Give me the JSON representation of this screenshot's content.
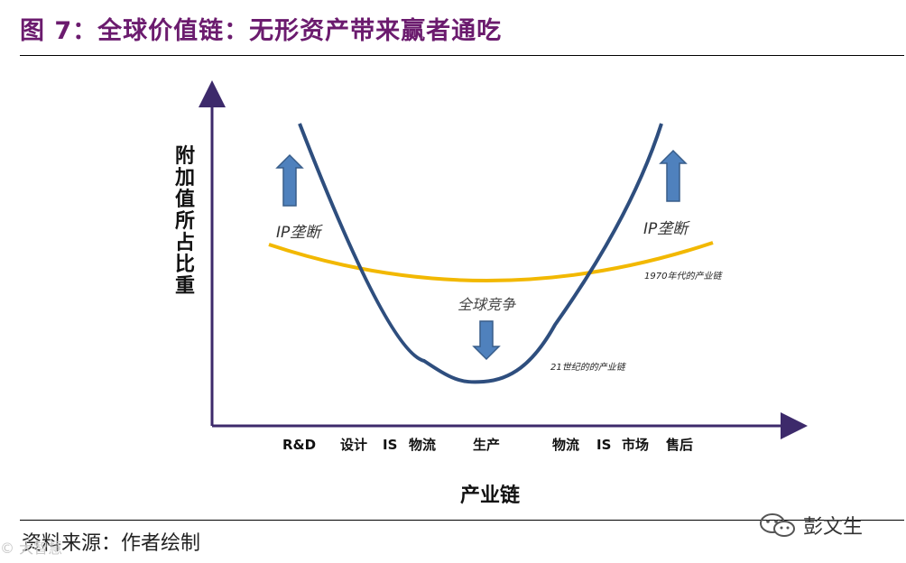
{
  "title": "图 7：全球价值链：无形资产带来赢者通吃",
  "chart_data": {
    "type": "diagram",
    "ylabel": "附加值所占比重",
    "xlabel": "产业链",
    "categories": [
      "R&D",
      "设计",
      "IS",
      "物流",
      "生产",
      "物流",
      "IS",
      "市场",
      "售后"
    ],
    "curves": [
      {
        "name": "21世纪的的产业链",
        "color": "#2e4e7e",
        "shape": "deep U"
      },
      {
        "name": "1970年代的产业链",
        "color": "#f2b800",
        "shape": "shallow U"
      }
    ],
    "annotations": {
      "ip_left": "IP垄断",
      "ip_right": "IP垄断",
      "global_competition": "全球竞争"
    },
    "colors": {
      "arrow_fill": "#4f81bd",
      "axis": "#3d2a6b",
      "title": "#6b1b6e"
    }
  },
  "source": "资料来源：作者绘制",
  "watermark_left": "© 大智慧",
  "wechat_name": "彭文生"
}
